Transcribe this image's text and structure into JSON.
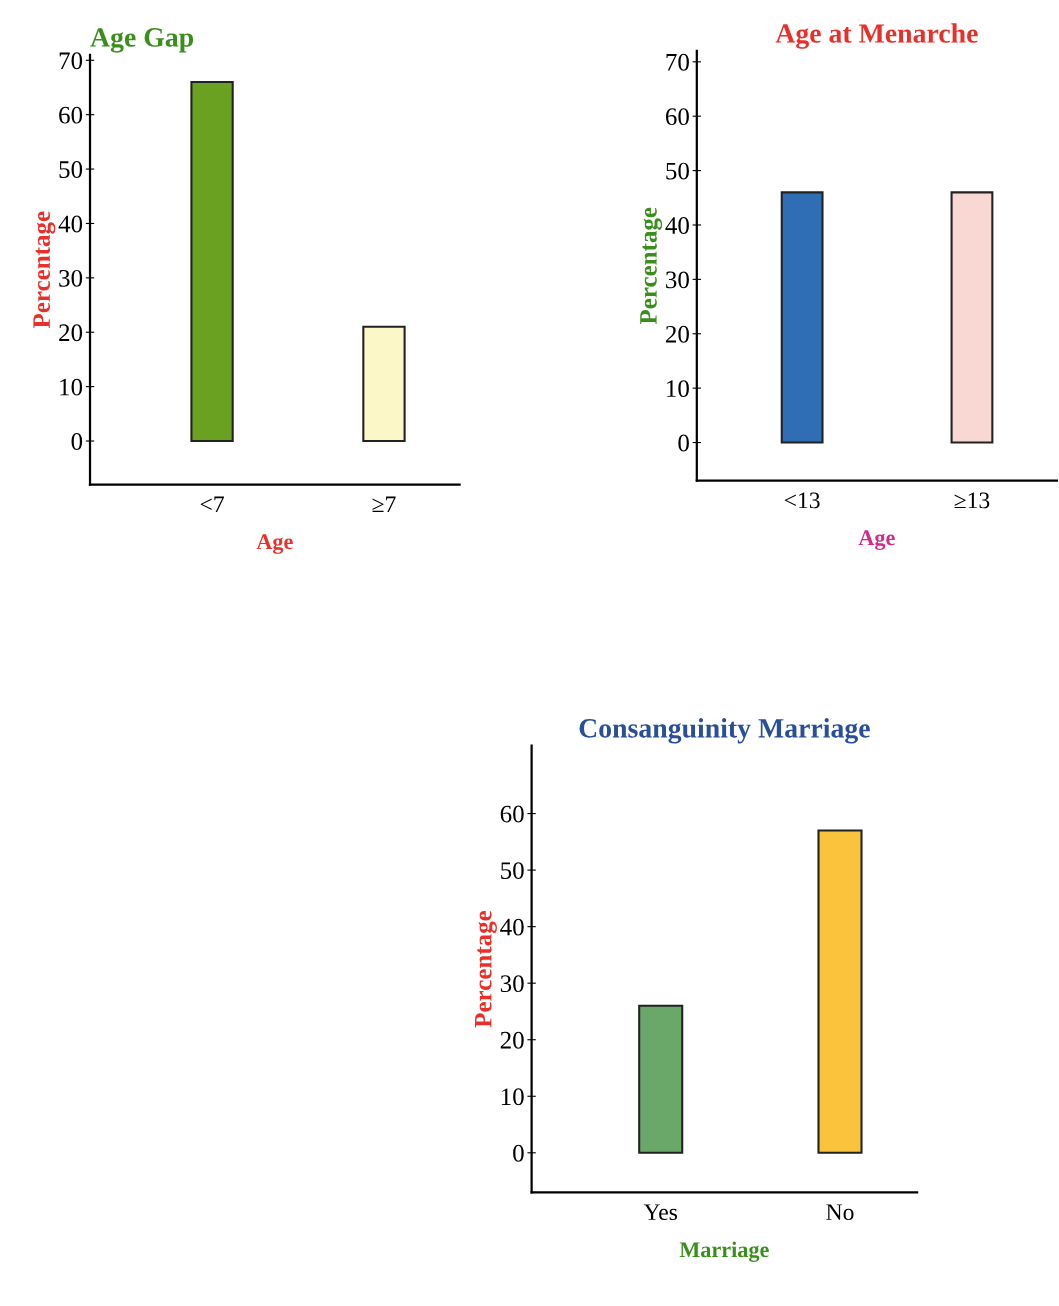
{
  "chart_data": [
    {
      "type": "bar",
      "title": "Age Gap",
      "xlabel": "Age",
      "ylabel": "Percentage",
      "categories": [
        "<7",
        "≥7"
      ],
      "values": [
        66,
        21
      ],
      "colors": [
        "#6aa121",
        "#fbf7c6"
      ],
      "ylim": [
        -8,
        71
      ],
      "yticks": [
        0,
        10,
        20,
        30,
        40,
        50,
        60,
        70
      ],
      "grid": false
    },
    {
      "type": "bar",
      "title": "Age at Menarche",
      "xlabel": "Age",
      "ylabel": "Percentage",
      "categories": [
        "<13",
        "≥13"
      ],
      "values": [
        46,
        46
      ],
      "colors": [
        "#2f6db5",
        "#f9d7d2"
      ],
      "ylim": [
        -7,
        72
      ],
      "yticks": [
        0,
        10,
        20,
        30,
        40,
        50,
        60,
        70
      ],
      "grid": false
    },
    {
      "type": "bar",
      "title": "Consanguinity Marriage",
      "xlabel": "Marriage",
      "ylabel": "Percentage",
      "categories": [
        "Yes",
        "No"
      ],
      "values": [
        26,
        57
      ],
      "colors": [
        "#6aa86a",
        "#f9c33c"
      ],
      "ylim": [
        -7,
        72
      ],
      "yticks": [
        0,
        10,
        20,
        30,
        40,
        50,
        60
      ],
      "grid": false
    }
  ]
}
